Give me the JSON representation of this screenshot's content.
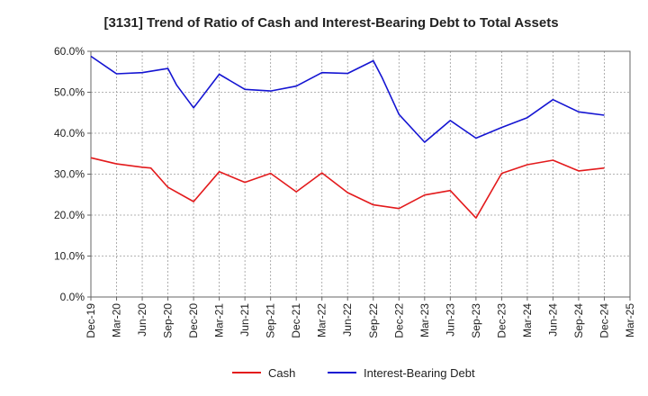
{
  "chart_data": {
    "type": "line",
    "title": "[3131]  Trend of Ratio of Cash and Interest-Bearing Debt to Total Assets",
    "xlabel": "",
    "ylabel": "",
    "ylim": [
      0,
      60
    ],
    "yticks": [
      "0.0%",
      "10.0%",
      "20.0%",
      "30.0%",
      "40.0%",
      "50.0%",
      "60.0%"
    ],
    "ytick_values": [
      0,
      10,
      20,
      30,
      40,
      50,
      60
    ],
    "x_tick_labels": [
      "Dec-19",
      "Mar-20",
      "Jun-20",
      "Sep-20",
      "Dec-20",
      "Mar-21",
      "Jun-21",
      "Sep-21",
      "Dec-21",
      "Mar-22",
      "Jun-22",
      "Sep-22",
      "Dec-22",
      "Mar-23",
      "Jun-23",
      "Sep-23",
      "Dec-23",
      "Mar-24",
      "Jun-24",
      "Sep-24",
      "Dec-24",
      "Mar-25"
    ],
    "grid": true,
    "legend_position": "bottom",
    "series": [
      {
        "name": "Cash",
        "color": "#e31a1c",
        "x": [
          "Dec-19",
          "Mar-20",
          "Jun-20",
          "Jul-20",
          "Sep-20",
          "Dec-20",
          "Mar-21",
          "Jun-21",
          "Sep-21",
          "Dec-21",
          "Mar-22",
          "Jun-22",
          "Sep-22",
          "Dec-22",
          "Mar-23",
          "Jun-23",
          "Sep-23",
          "Dec-23",
          "Mar-24",
          "Jun-24",
          "Sep-24",
          "Dec-24"
        ],
        "values": [
          34.0,
          32.5,
          31.7,
          31.5,
          26.8,
          23.3,
          30.6,
          28.0,
          30.2,
          25.7,
          30.3,
          25.5,
          22.5,
          21.6,
          24.9,
          26.0,
          19.3,
          30.2,
          32.3,
          33.4,
          30.8,
          31.5
        ]
      },
      {
        "name": "Interest-Bearing Debt",
        "color": "#1414d2",
        "x": [
          "Dec-19",
          "Mar-20",
          "Jun-20",
          "Sep-20",
          "Oct-20",
          "Dec-20",
          "Mar-21",
          "Jun-21",
          "Sep-21",
          "Dec-21",
          "Mar-22",
          "Jun-22",
          "Sep-22",
          "Oct-22",
          "Dec-22",
          "Mar-23",
          "Jun-23",
          "Sep-23",
          "Dec-23",
          "Mar-24",
          "Jun-24",
          "Sep-24",
          "Dec-24"
        ],
        "values": [
          58.8,
          54.5,
          54.8,
          55.8,
          51.8,
          46.2,
          54.4,
          50.7,
          50.3,
          51.5,
          54.8,
          54.6,
          57.7,
          53.7,
          44.6,
          37.8,
          43.1,
          38.8,
          41.4,
          43.8,
          48.2,
          45.2,
          44.4
        ]
      }
    ]
  }
}
